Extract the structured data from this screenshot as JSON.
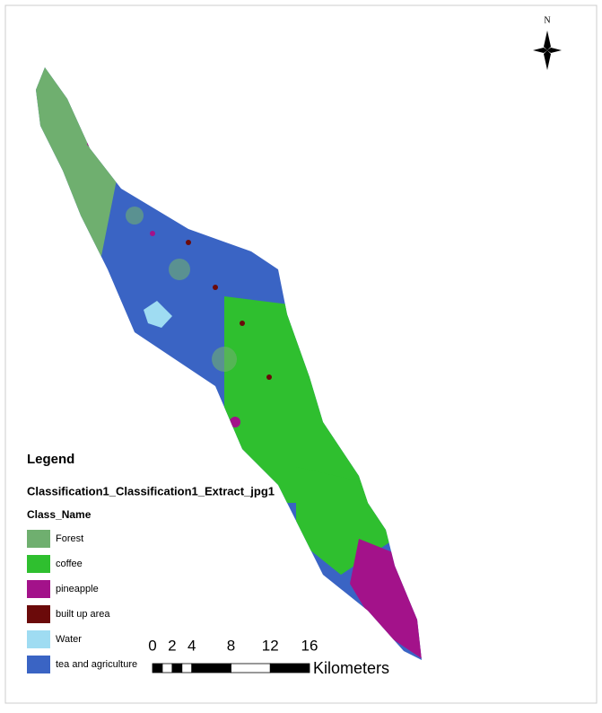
{
  "north_arrow": {
    "label": "N"
  },
  "legend": {
    "title": "Legend",
    "layer": "Classification1_Classification1_Extract_jpg1",
    "field": "Class_Name",
    "items": [
      {
        "label": "Forest",
        "color": "#6faf6f"
      },
      {
        "label": "coffee",
        "color": "#2fbf2f"
      },
      {
        "label": "pineapple",
        "color": "#a3128a"
      },
      {
        "label": "built up area",
        "color": "#6b0a0a"
      },
      {
        "label": "Water",
        "color": "#9fdcf2"
      },
      {
        "label": "tea and agriculture",
        "color": "#3a64c4"
      }
    ]
  },
  "scale_bar": {
    "ticks": [
      0,
      2,
      4,
      8,
      12,
      16
    ],
    "unit": "Kilometers"
  }
}
